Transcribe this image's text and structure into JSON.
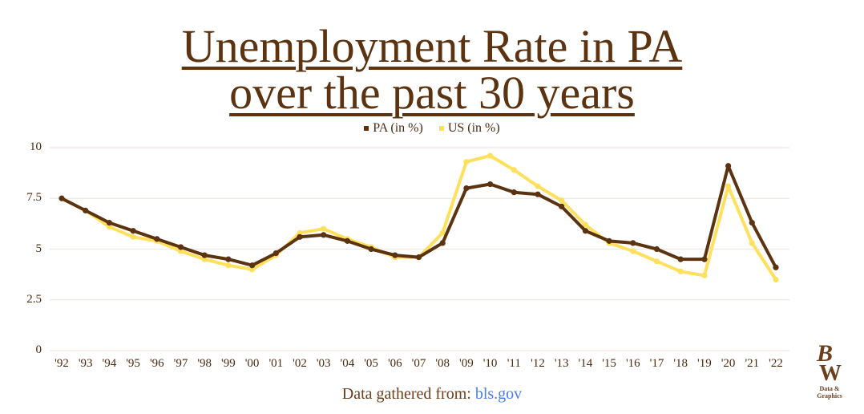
{
  "title_line1": "Unemployment Rate in PA",
  "title_line2": "over the past 30 years",
  "legend": [
    {
      "label": "PA (in %)",
      "color": "#5c3310"
    },
    {
      "label": "US (in %)",
      "color": "#ffe05c"
    }
  ],
  "footer": {
    "prefix": "Data gathered from: ",
    "link": "bls.gov"
  },
  "logo": {
    "letters_top": "B",
    "letters_bottom": "W",
    "subtitle": "Data & Graphics"
  },
  "chart_data": {
    "type": "line",
    "title": "Unemployment Rate in PA over the past 30 years",
    "xlabel": "",
    "ylabel": "",
    "categories": [
      "'92",
      "'93",
      "'94",
      "'95",
      "'96",
      "'97",
      "'98",
      "'99",
      "'00",
      "'01",
      "'02",
      "'03",
      "'04",
      "'05",
      "'06",
      "'07",
      "'08",
      "'09",
      "'10",
      "'11",
      "'12",
      "'13",
      "'14",
      "'15",
      "'16",
      "'17",
      "'18",
      "'19",
      "'20",
      "'21",
      "'22"
    ],
    "series": [
      {
        "name": "PA (in %)",
        "color": "#5c3310",
        "values": [
          7.5,
          6.9,
          6.3,
          5.9,
          5.5,
          5.1,
          4.7,
          4.5,
          4.2,
          4.8,
          5.6,
          5.7,
          5.4,
          5.0,
          4.7,
          4.6,
          5.3,
          8.0,
          8.2,
          7.8,
          7.7,
          7.1,
          5.9,
          5.4,
          5.3,
          5.0,
          4.5,
          4.5,
          9.1,
          6.3,
          4.1
        ]
      },
      {
        "name": "US (in %)",
        "color": "#ffe05c",
        "values": [
          7.5,
          6.9,
          6.1,
          5.6,
          5.4,
          4.9,
          4.5,
          4.2,
          4.0,
          4.7,
          5.8,
          6.0,
          5.5,
          5.1,
          4.6,
          4.6,
          5.8,
          9.3,
          9.6,
          8.9,
          8.1,
          7.4,
          6.2,
          5.3,
          4.9,
          4.4,
          3.9,
          3.7,
          8.1,
          5.3,
          3.5
        ]
      }
    ],
    "yticks": [
      "0",
      "2.5",
      "5",
      "7.5",
      "10"
    ],
    "ylim": [
      0,
      10
    ],
    "grid": true,
    "legend_position": "top"
  }
}
